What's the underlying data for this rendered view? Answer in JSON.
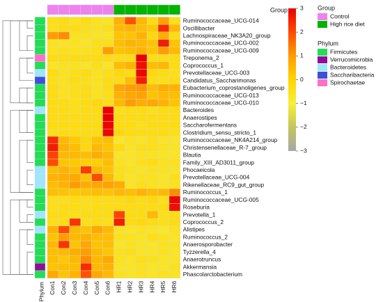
{
  "chart_data": {
    "type": "heatmap",
    "samples": [
      "Con1",
      "Con2",
      "Con3",
      "Con4",
      "Con5",
      "Con6",
      "HR1",
      "HR2",
      "HR3",
      "HR4",
      "HR5",
      "HR6"
    ],
    "sample_groups": [
      "Control",
      "Control",
      "Control",
      "Control",
      "Control",
      "Control",
      "High rice diet",
      "High rice diet",
      "High rice diet",
      "High rice diet",
      "High rice diet",
      "High rice diet"
    ],
    "group_track_label": "Group",
    "phylum_track_label": "Phylum",
    "taxa": [
      "Ruminococcaceae_UCG-014",
      "Oscillibacter",
      "Lachnospiraceae_NK3A20_group",
      "Ruminococcaceae_UCG-002",
      "Ruminococcaceae_UCG-009",
      "Treponema_2",
      "Coprococcus_1",
      "Prevotellaceae_UCG-003",
      "Candidatus_Saccharimonas",
      "Eubacterium_coprostanoligenes_group",
      "Ruminococcaceae_UCG-013",
      "Ruminococcaceae_UCG-010",
      "Bacteroides",
      "Anaerostipes",
      "Saccharofermentans",
      "Clostridium_sensu_stricto_1",
      "Ruminococcaceae_NK4A214_group",
      "Christensenellaceae_R-7_group",
      "Blautia",
      "Family_XIII_AD3011_group",
      "Phocaeicola",
      "Prevotellaceae_UCG-004",
      "Rikenellaceae_RC9_gut_group",
      "Ruminococcus_1",
      "Ruminococcaceae_UCG-005",
      "Roseburia",
      "Prevotella_1",
      "Coprococcus_2",
      "Alistipes",
      "Ruminococcus_2",
      "Anaerosporobacter",
      "Tyzzerella_4",
      "Anaerotruncus",
      "Akkermansia",
      "Phascolarctobacterium"
    ],
    "taxa_phylum": [
      "Firmicutes",
      "Firmicutes",
      "Firmicutes",
      "Firmicutes",
      "Firmicutes",
      "Spirochaetae",
      "Firmicutes",
      "Bacteroidetes",
      "Saccharibacteria",
      "Firmicutes",
      "Firmicutes",
      "Firmicutes",
      "Bacteroidetes",
      "Firmicutes",
      "Firmicutes",
      "Firmicutes",
      "Firmicutes",
      "Firmicutes",
      "Firmicutes",
      "Firmicutes",
      "Bacteroidetes",
      "Bacteroidetes",
      "Bacteroidetes",
      "Firmicutes",
      "Firmicutes",
      "Firmicutes",
      "Bacteroidetes",
      "Firmicutes",
      "Bacteroidetes",
      "Firmicutes",
      "Firmicutes",
      "Firmicutes",
      "Firmicutes",
      "Verrucomicrobia",
      "Firmicutes"
    ],
    "values": [
      [
        -0.4,
        -0.3,
        -0.5,
        -0.3,
        -0.5,
        -0.6,
        0.6,
        1.9,
        0.5,
        -0.3,
        0.9,
        -0.4
      ],
      [
        -0.4,
        -0.3,
        -0.3,
        -0.4,
        -0.5,
        -0.4,
        0.5,
        0.6,
        0.4,
        0.2,
        2.4,
        0.5
      ],
      [
        1.0,
        1.2,
        -0.5,
        -0.5,
        -0.6,
        -0.6,
        0.3,
        0.3,
        0.6,
        -0.2,
        0.7,
        -0.3
      ],
      [
        -0.5,
        -0.6,
        -0.5,
        -0.6,
        -0.4,
        -0.4,
        0.4,
        0.6,
        0.5,
        0.3,
        2.6,
        0.3
      ],
      [
        -0.5,
        -0.4,
        -0.5,
        -0.5,
        -0.4,
        1.0,
        0.3,
        0.4,
        0.6,
        0.3,
        1.0,
        0.5
      ],
      [
        -0.3,
        -0.3,
        -0.3,
        -0.3,
        -0.3,
        -0.3,
        -0.3,
        -0.3,
        3.0,
        -0.3,
        -0.3,
        -0.3
      ],
      [
        -0.6,
        -0.5,
        -0.5,
        -0.6,
        -0.4,
        -0.6,
        0.4,
        0.6,
        2.8,
        0.4,
        0.5,
        -0.3
      ],
      [
        -0.3,
        -0.5,
        -0.4,
        -0.3,
        -0.5,
        -0.4,
        -0.2,
        -0.3,
        2.9,
        -0.2,
        -0.3,
        -0.4
      ],
      [
        -0.4,
        -0.5,
        -0.3,
        -0.4,
        -0.5,
        -0.3,
        -0.3,
        0.4,
        2.6,
        -0.3,
        -0.4,
        -0.3
      ],
      [
        -0.3,
        -0.5,
        -0.4,
        -0.3,
        -0.5,
        -0.3,
        0.8,
        1.0,
        1.1,
        0.4,
        0.7,
        0.6
      ],
      [
        -0.3,
        -0.5,
        -0.4,
        -0.3,
        -0.5,
        -0.4,
        0.6,
        0.8,
        0.9,
        0.3,
        0.5,
        0.4
      ],
      [
        -0.3,
        -0.3,
        -0.4,
        -0.3,
        -0.2,
        -0.4,
        0.5,
        1.0,
        0.7,
        0.8,
        0.6,
        0.3
      ],
      [
        -0.3,
        -0.3,
        -0.4,
        -0.3,
        -0.3,
        3.0,
        -0.4,
        -0.3,
        -0.3,
        -0.4,
        -0.3,
        -0.3
      ],
      [
        -0.3,
        -0.3,
        -0.3,
        -0.3,
        -0.3,
        3.0,
        -0.3,
        -0.3,
        -0.3,
        -0.3,
        -0.3,
        -0.3
      ],
      [
        -0.3,
        -0.3,
        -0.3,
        -0.3,
        -0.3,
        2.9,
        -0.3,
        -0.3,
        -0.4,
        -0.3,
        -0.3,
        -0.3
      ],
      [
        -0.4,
        -0.3,
        -0.3,
        -0.3,
        -0.3,
        2.9,
        -0.2,
        -0.3,
        -0.3,
        -0.3,
        -0.3,
        -0.4
      ],
      [
        2.4,
        0.5,
        0.2,
        -0.2,
        0.3,
        0.4,
        -0.7,
        -0.5,
        -0.6,
        -0.4,
        -0.6,
        -0.6
      ],
      [
        2.6,
        0.6,
        0.4,
        -0.2,
        0.5,
        0.3,
        -0.3,
        -0.6,
        -0.4,
        -0.4,
        -0.5,
        -0.6
      ],
      [
        2.1,
        0.5,
        0.5,
        0.4,
        0.7,
        0.5,
        -0.6,
        -0.6,
        -0.5,
        -0.5,
        -0.6,
        -0.6
      ],
      [
        2.0,
        0.3,
        0.2,
        0.1,
        0.1,
        0.4,
        -0.5,
        -0.6,
        -0.4,
        -0.3,
        -0.5,
        -0.5
      ],
      [
        0.4,
        0.6,
        0.4,
        2.2,
        0.5,
        0.3,
        -0.4,
        -0.5,
        -0.6,
        -0.5,
        -0.5,
        -0.6
      ],
      [
        0.6,
        0.7,
        0.8,
        0.3,
        2.0,
        0.5,
        -0.4,
        -0.6,
        -0.5,
        -0.5,
        -0.6,
        -0.4
      ],
      [
        0.4,
        0.6,
        1.0,
        0.7,
        0.8,
        0.9,
        0.7,
        -0.6,
        -0.4,
        -0.5,
        -0.6,
        -0.5
      ],
      [
        0.4,
        0.3,
        0.2,
        0.3,
        0.4,
        0.3,
        0.5,
        0.4,
        0.6,
        0.4,
        0.5,
        1.2
      ],
      [
        -0.4,
        -0.4,
        -0.3,
        -0.4,
        -0.3,
        -0.3,
        -0.3,
        -0.2,
        -0.3,
        -0.2,
        -0.4,
        2.9
      ],
      [
        -0.4,
        -0.3,
        -0.3,
        -0.4,
        -0.3,
        -0.3,
        -0.3,
        -0.3,
        -0.3,
        -0.3,
        -0.3,
        2.8
      ],
      [
        -0.3,
        -0.3,
        -0.4,
        -0.3,
        -0.3,
        -0.3,
        2.1,
        -0.3,
        -0.3,
        0.5,
        -0.4,
        -0.3
      ],
      [
        -0.4,
        -0.3,
        2.3,
        -0.4,
        -0.3,
        -0.4,
        2.6,
        -0.3,
        -0.2,
        -0.3,
        -0.4,
        -0.3
      ],
      [
        0.6,
        2.0,
        0.5,
        0.3,
        0.8,
        0.5,
        -0.6,
        -0.6,
        -0.5,
        -0.6,
        -0.7,
        -0.5
      ],
      [
        0.3,
        1.0,
        0.5,
        0.6,
        0.4,
        0.4,
        -0.5,
        -0.5,
        -0.6,
        -0.4,
        -0.5,
        -0.6
      ],
      [
        0.5,
        2.3,
        0.3,
        0.8,
        0.3,
        0.4,
        -0.6,
        -0.5,
        -0.6,
        -0.6,
        -0.5,
        -0.5
      ],
      [
        0.4,
        0.5,
        0.7,
        1.0,
        0.5,
        0.3,
        -0.5,
        -0.4,
        -0.6,
        -0.6,
        -0.5,
        -0.6
      ],
      [
        0.4,
        0.2,
        0.5,
        1.2,
        0.5,
        0.8,
        -0.5,
        -0.6,
        -0.4,
        -0.5,
        -0.6,
        -0.6
      ],
      [
        0.3,
        0.4,
        0.4,
        2.4,
        0.5,
        0.6,
        -0.6,
        -0.6,
        -0.5,
        -0.6,
        -0.6,
        -0.5
      ],
      [
        0.8,
        0.3,
        0.6,
        1.9,
        0.8,
        0.5,
        -0.5,
        -0.6,
        -0.5,
        -0.6,
        -0.5,
        -0.6
      ]
    ],
    "color_scale": {
      "min": -3,
      "max": 3,
      "ticks": [
        3,
        2,
        1,
        0,
        -1,
        -2,
        -3
      ],
      "stops": [
        {
          "v": -3,
          "color": "#a8a8a8"
        },
        {
          "v": -2,
          "color": "#c5c55a"
        },
        {
          "v": -1,
          "color": "#f7ef3a"
        },
        {
          "v": 0,
          "color": "#ffd400"
        },
        {
          "v": 1,
          "color": "#ff9d00"
        },
        {
          "v": 2,
          "color": "#ff4a00"
        },
        {
          "v": 3,
          "color": "#ea0000"
        }
      ]
    },
    "group_legend": {
      "title": "Group",
      "items": [
        {
          "label": "Control",
          "color": "#ee82ee"
        },
        {
          "label": "High rice diet",
          "color": "#00b400"
        }
      ]
    },
    "phylum_legend": {
      "title": "Phylum",
      "items": [
        {
          "label": "Firmicutes",
          "color": "#22dd55"
        },
        {
          "label": "Verrucomicrobia",
          "color": "#8e0e9a"
        },
        {
          "label": "Bacteroidetes",
          "color": "#9fe6ff"
        },
        {
          "label": "Saccharibacteria",
          "color": "#3a52d6"
        },
        {
          "label": "Spirochaetae",
          "color": "#ff6fc8"
        }
      ]
    }
  }
}
